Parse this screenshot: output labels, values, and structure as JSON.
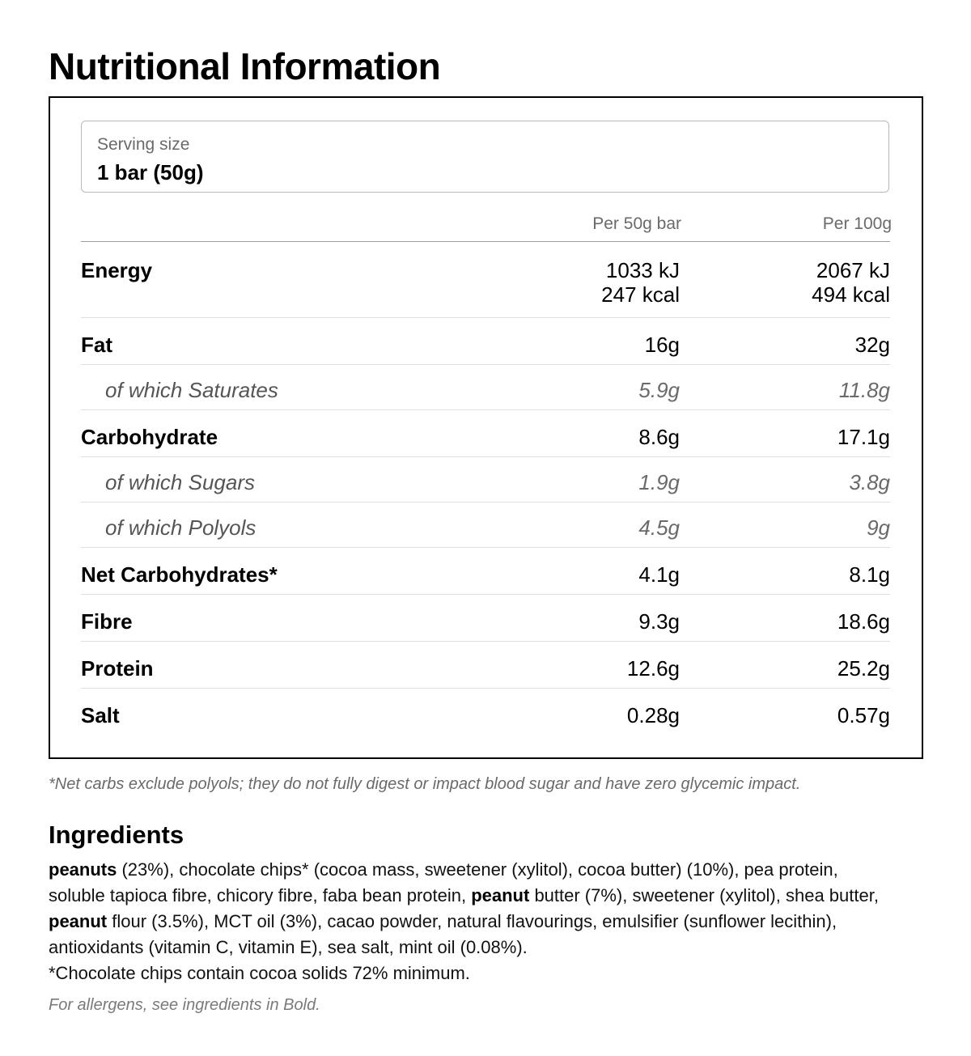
{
  "title": "Nutritional Information",
  "serving": {
    "label": "Serving size",
    "value": "1 bar (50g)"
  },
  "columns": {
    "per_bar": "Per 50g bar",
    "per_100g": "Per 100g"
  },
  "rows": [
    {
      "name": "Energy",
      "per_bar_kj": "1033 kJ",
      "per_bar_kcal": "247 kcal",
      "per_100g_kj": "2067 kJ",
      "per_100g_kcal": "494 kcal"
    },
    {
      "name": "Fat",
      "per_bar": "16g",
      "per_100g": "32g"
    },
    {
      "name": "of which Saturates",
      "per_bar": "5.9g",
      "per_100g": "11.8g"
    },
    {
      "name": "Carbohydrate",
      "per_bar": "8.6g",
      "per_100g": "17.1g"
    },
    {
      "name": "of which Sugars",
      "per_bar": "1.9g",
      "per_100g": "3.8g"
    },
    {
      "name": "of which Polyols",
      "per_bar": "4.5g",
      "per_100g": "9g"
    },
    {
      "name": "Net Carbohydrates*",
      "per_bar": "4.1g",
      "per_100g": "8.1g"
    },
    {
      "name": "Fibre",
      "per_bar": "9.3g",
      "per_100g": "18.6g"
    },
    {
      "name": "Protein",
      "per_bar": "12.6g",
      "per_100g": "25.2g"
    },
    {
      "name": "Salt",
      "per_bar": "0.28g",
      "per_100g": "0.57g"
    }
  ],
  "footnote": "*Net carbs exclude polyols; they do not fully digest or impact blood sugar and have zero glycemic impact.",
  "ingredients": {
    "title": "Ingredients",
    "segments": [
      {
        "text": "peanuts",
        "bold": true
      },
      {
        "text": " (23%), chocolate chips* (cocoa mass, sweetener (xylitol), cocoa butter) (10%), pea protein, soluble tapioca fibre, chicory fibre, faba bean protein, ",
        "bold": false
      },
      {
        "text": "peanut",
        "bold": true
      },
      {
        "text": " butter (7%), sweetener (xylitol), shea butter, ",
        "bold": false
      },
      {
        "text": "peanut",
        "bold": true
      },
      {
        "text": " flour (3.5%), MCT oil (3%), cacao powder, natural flavourings, emulsifier (sunflower lecithin), antioxidants (vitamin C, vitamin E), sea salt, mint oil (0.08%).",
        "bold": false
      }
    ],
    "chips_note": "*Chocolate chips contain cocoa solids 72% minimum."
  },
  "allergen_note": "For allergens, see ingredients in Bold."
}
